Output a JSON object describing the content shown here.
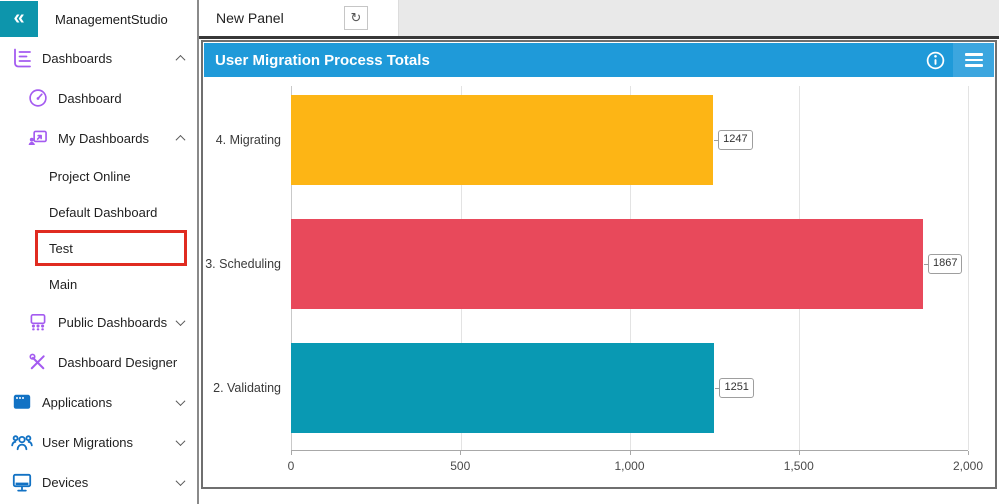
{
  "app": {
    "name": "ManagementStudio"
  },
  "titlebar": {
    "collapse_icon": "collapse-sidebar-icon"
  },
  "sidebar": {
    "highlight_color": "#e02b20",
    "items": [
      {
        "label": "Dashboards",
        "level": 1,
        "icon": "dashboards-icon",
        "icon_color": "#a45bf0",
        "chevron": "up"
      },
      {
        "label": "Dashboard",
        "level": 2,
        "icon": "gauge-icon",
        "icon_color": "#a45bf0"
      },
      {
        "label": "My Dashboards",
        "level": 2,
        "icon": "my-dashboards-icon",
        "icon_color": "#a45bf0",
        "chevron": "up"
      },
      {
        "label": "Project Online",
        "level": 3
      },
      {
        "label": "Default Dashboard",
        "level": 3
      },
      {
        "label": "Test",
        "level": 3,
        "highlighted": true
      },
      {
        "label": "Main",
        "level": 3
      },
      {
        "label": "Public Dashboards",
        "level": 2,
        "icon": "public-dashboards-icon",
        "icon_color": "#a45bf0",
        "chevron": "down"
      },
      {
        "label": "Dashboard Designer",
        "level": 2,
        "icon": "designer-icon",
        "icon_color": "#a45bf0"
      },
      {
        "label": "Applications",
        "level": 1,
        "icon": "applications-icon",
        "icon_color": "#1272c4",
        "chevron": "down"
      },
      {
        "label": "User Migrations",
        "level": 1,
        "icon": "user-migrations-icon",
        "icon_color": "#1272c4",
        "chevron": "down"
      },
      {
        "label": "Devices",
        "level": 1,
        "icon": "devices-icon",
        "icon_color": "#1272c4",
        "chevron": "down"
      }
    ]
  },
  "tabbar": {
    "tab_label": "New Panel",
    "refresh_icon": "refresh-icon"
  },
  "panel": {
    "title": "User Migration Process Totals",
    "header_color": "#1f9ad9",
    "icons": [
      "info-icon",
      "hamburger-menu-icon"
    ]
  },
  "chart_data": {
    "type": "bar",
    "orientation": "horizontal",
    "title": "User Migration Process Totals",
    "categories": [
      "4. Migrating",
      "3. Scheduling",
      "2. Validating"
    ],
    "values": [
      1247,
      1867,
      1251
    ],
    "value_labels": [
      "1247",
      "1867",
      "1251"
    ],
    "bar_colors": [
      "#fdb515",
      "#e8495b",
      "#0999b3"
    ],
    "xlim": [
      0,
      2000
    ],
    "x_ticks": [
      {
        "value": 0,
        "label": "0"
      },
      {
        "value": 500,
        "label": "500"
      },
      {
        "value": 1000,
        "label": "1,000"
      },
      {
        "value": 1500,
        "label": "1,500"
      },
      {
        "value": 2000,
        "label": "2,000"
      }
    ],
    "grid": true,
    "legend": false
  },
  "colors": {
    "logo_teal": "#0d95ac",
    "header_blue": "#1f9ad9",
    "tab_strip_gray": "#e9e9e9"
  }
}
